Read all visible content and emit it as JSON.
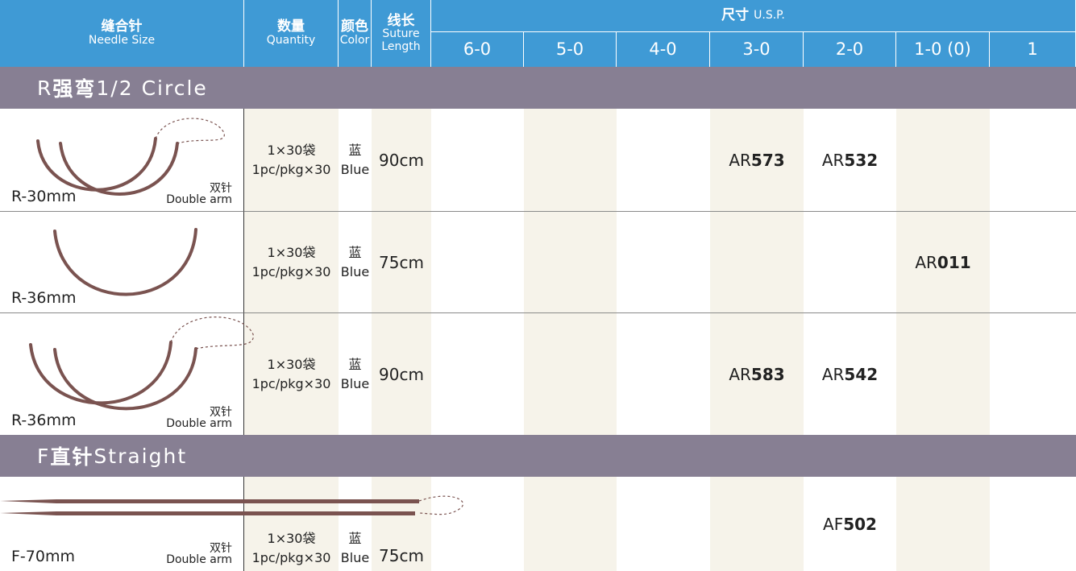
{
  "header": {
    "needle_size": {
      "zh": "缝合针",
      "en": "Needle Size"
    },
    "quantity": {
      "zh": "数量",
      "en": "Quantity"
    },
    "color": {
      "zh": "颜色",
      "en": "Color"
    },
    "length": {
      "zh": "线长",
      "en": [
        "Suture",
        "Length"
      ]
    },
    "size": {
      "zh": "尺寸",
      "en": "U.S.P."
    },
    "sizes": [
      "6-0",
      "5-0",
      "4-0",
      "3-0",
      "2-0",
      "1-0 (0)",
      "1"
    ]
  },
  "sections": [
    {
      "code": "R",
      "zh": "强弯",
      "en": "1/2 Circle",
      "rows": [
        {
          "needle": "R-30mm",
          "arm": {
            "zh": "双针",
            "en": "Double arm"
          },
          "quantity": {
            "zh": "1×30袋",
            "en": "1pc/pkg×30"
          },
          "color": {
            "zh": "蓝",
            "en": "Blue"
          },
          "length": "90cm",
          "codes": [
            null,
            null,
            null,
            {
              "prefix": "AR",
              "number": "573"
            },
            {
              "prefix": "AR",
              "number": "532"
            },
            null,
            null
          ]
        },
        {
          "needle": "R-36mm",
          "arm": null,
          "quantity": {
            "zh": "1×30袋",
            "en": "1pc/pkg×30"
          },
          "color": {
            "zh": "蓝",
            "en": "Blue"
          },
          "length": "75cm",
          "codes": [
            null,
            null,
            null,
            null,
            null,
            {
              "prefix": "AR",
              "number": "011"
            },
            null
          ]
        },
        {
          "needle": "R-36mm",
          "arm": {
            "zh": "双针",
            "en": "Double arm"
          },
          "quantity": {
            "zh": "1×30袋",
            "en": "1pc/pkg×30"
          },
          "color": {
            "zh": "蓝",
            "en": "Blue"
          },
          "length": "90cm",
          "codes": [
            null,
            null,
            null,
            {
              "prefix": "AR",
              "number": "583"
            },
            {
              "prefix": "AR",
              "number": "542"
            },
            null,
            null
          ]
        }
      ]
    },
    {
      "code": "F",
      "zh": "直针",
      "en": "Straight",
      "rows": [
        {
          "needle": "F-70mm",
          "arm": {
            "zh": "双针",
            "en": "Double arm"
          },
          "quantity": {
            "zh": "1×30袋",
            "en": "1pc/pkg×30"
          },
          "color": {
            "zh": "蓝",
            "en": "Blue"
          },
          "length": "75cm",
          "codes": [
            null,
            null,
            null,
            null,
            {
              "prefix": "AF",
              "number": "502"
            },
            null,
            null
          ]
        }
      ]
    }
  ]
}
